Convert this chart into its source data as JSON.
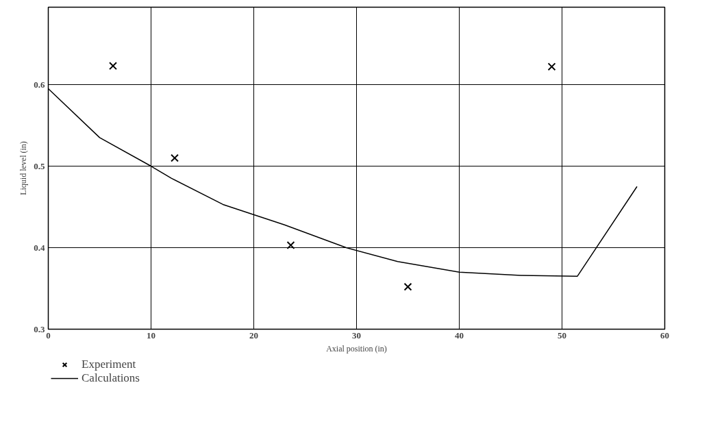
{
  "chart_data": {
    "type": "line",
    "xlabel": "Axial position (in)",
    "ylabel": "Liquid level (in)",
    "xlim": [
      0,
      60
    ],
    "ylim": [
      0.3,
      0.695
    ],
    "xticks": [
      0,
      10,
      20,
      30,
      40,
      50,
      60
    ],
    "yticks": [
      0.3,
      0.4,
      0.5,
      0.6
    ],
    "grid": true,
    "legend": "bottom left",
    "series": [
      {
        "name": "Experiment",
        "type": "scatter",
        "marker": "cross",
        "color": "#000000",
        "x": [
          6.3,
          12.3,
          23.6,
          35.0,
          49.0
        ],
        "values": [
          0.623,
          0.51,
          0.403,
          0.352,
          0.622
        ]
      },
      {
        "name": "Calculations",
        "color": "#000000",
        "x": [
          0,
          5,
          10,
          12,
          17,
          23,
          29,
          34,
          40,
          46,
          51.5,
          57.3
        ],
        "values": [
          0.595,
          0.535,
          0.5,
          0.485,
          0.453,
          0.428,
          0.4,
          0.383,
          0.37,
          0.366,
          0.365,
          0.475
        ]
      }
    ]
  }
}
